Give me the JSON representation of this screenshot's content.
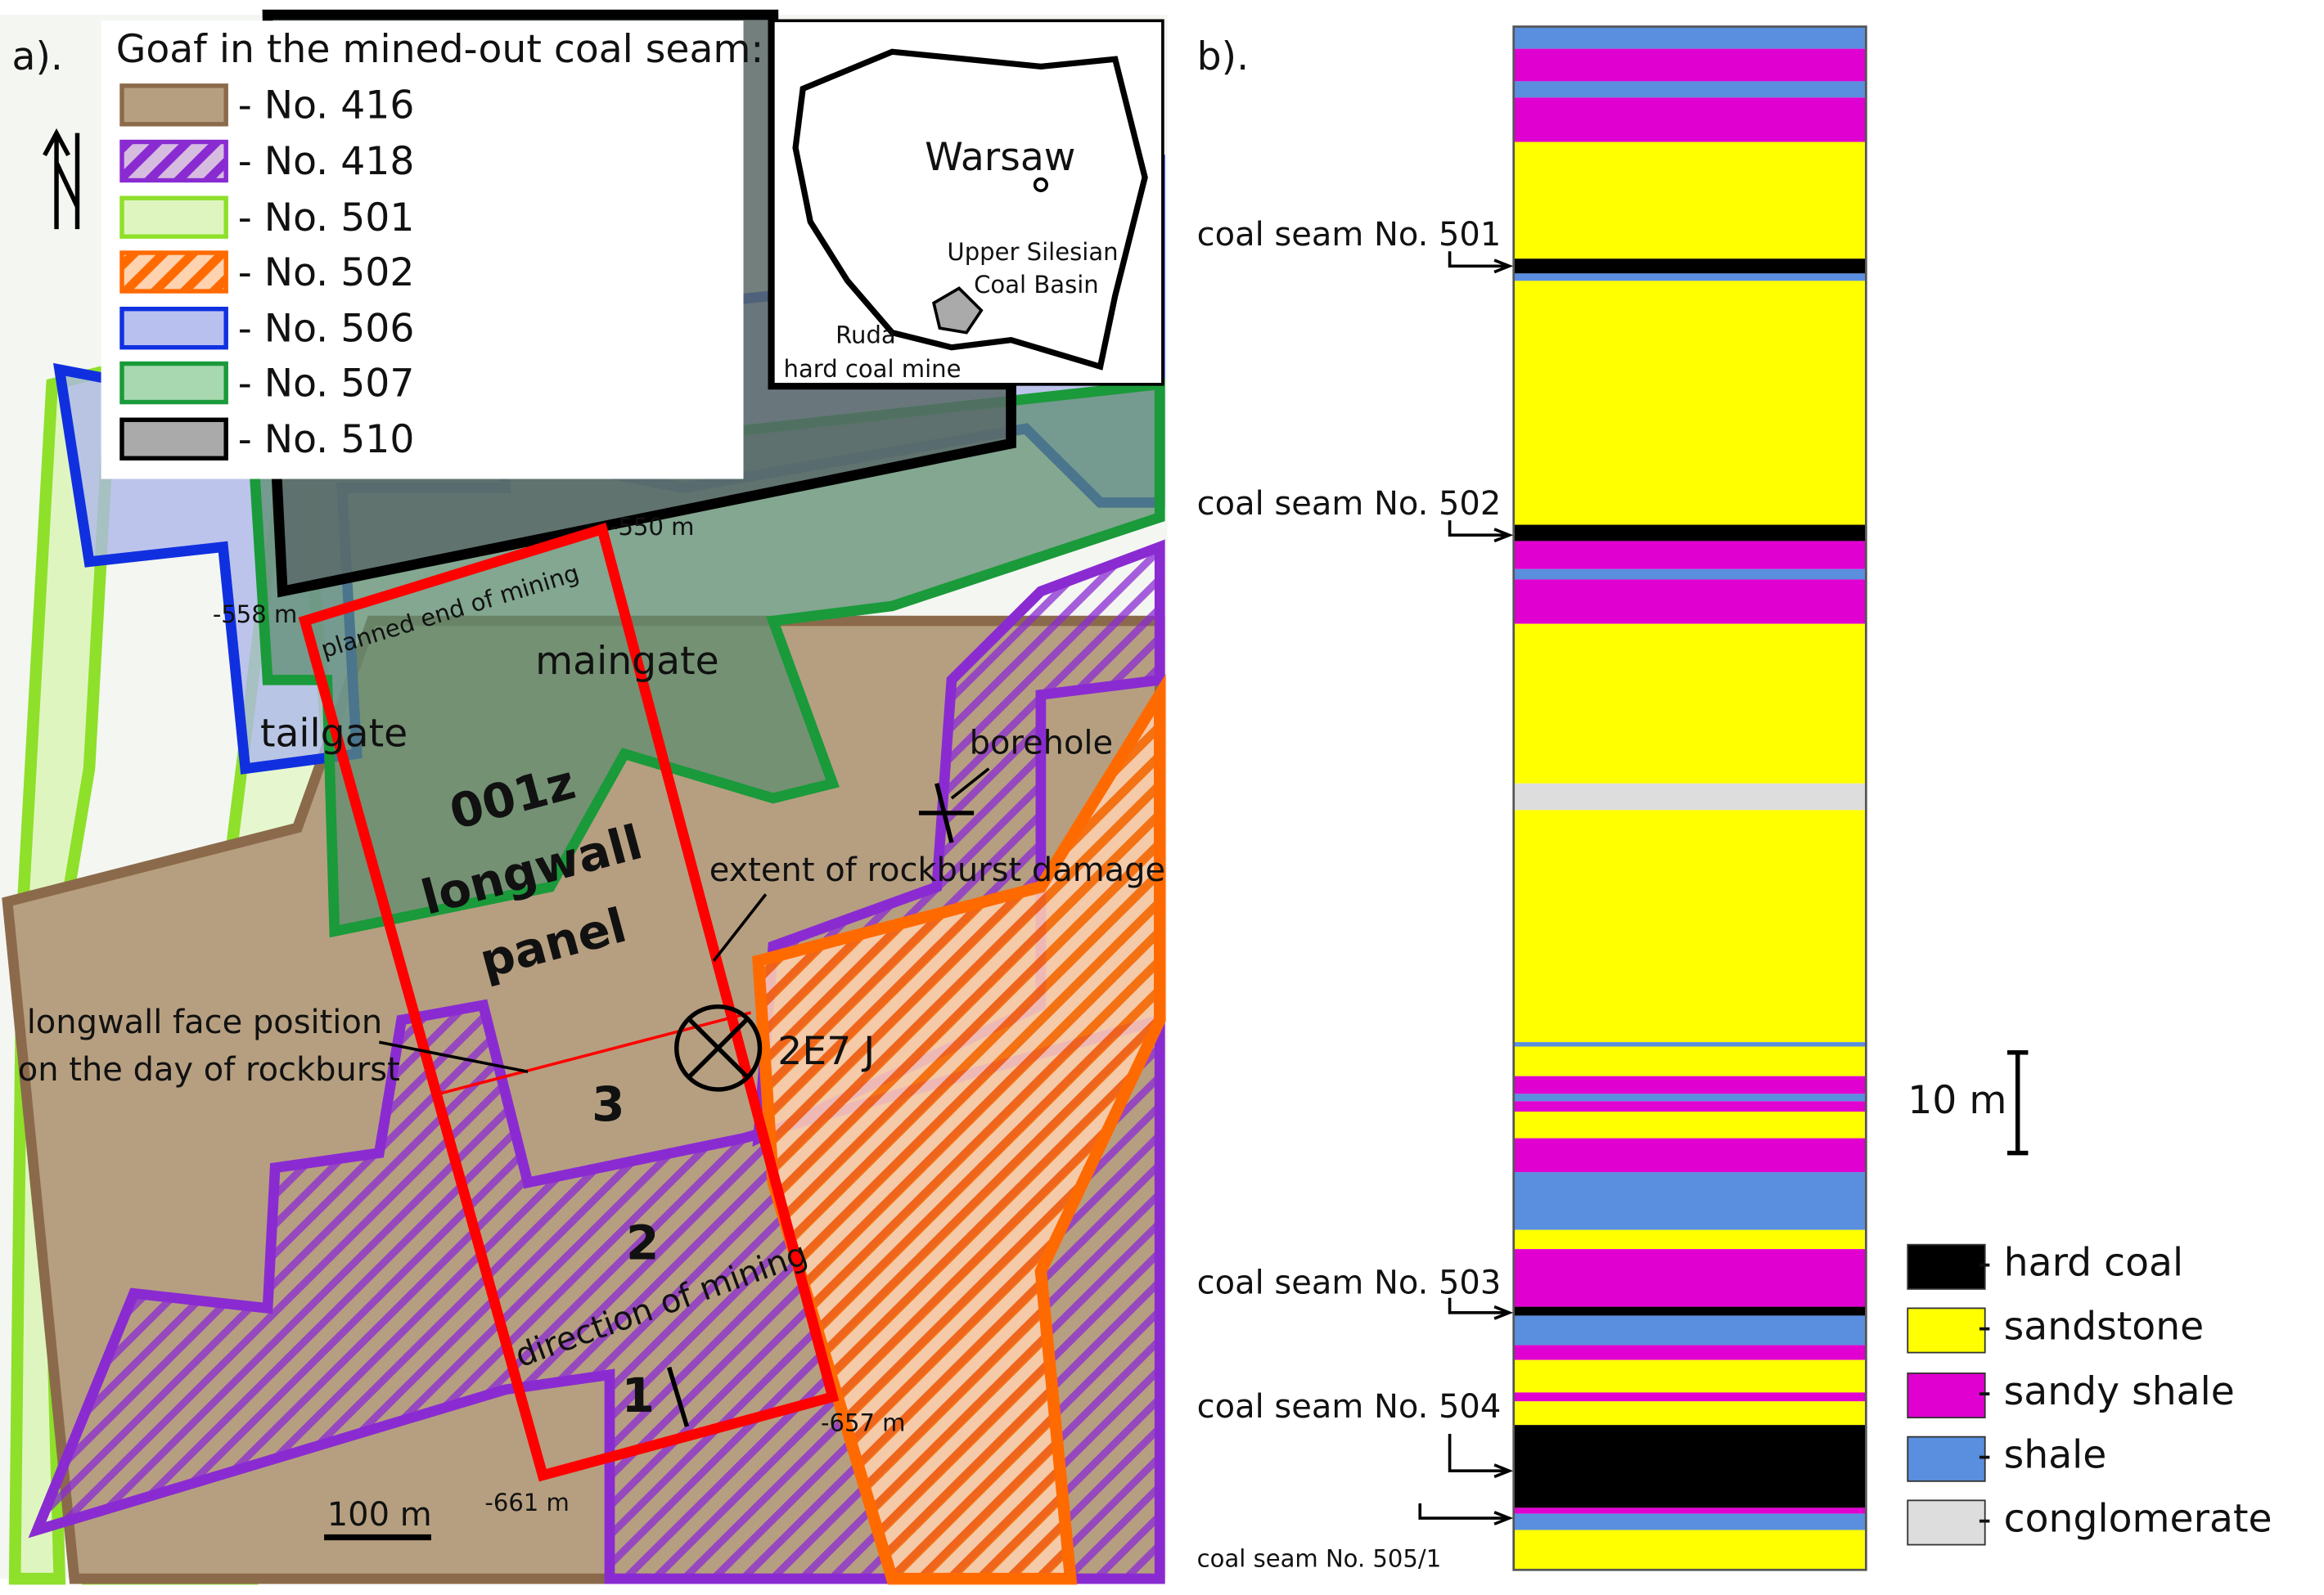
{
  "panel_a": {
    "label": "a).",
    "legend": {
      "title": "Goaf in the mined-out coal seam:",
      "items": [
        "- No. 416",
        "- No. 418",
        "- No. 501",
        "- No. 502",
        "- No. 506",
        "- No. 507",
        "- No. 510"
      ]
    },
    "inset": {
      "city": "Warsaw",
      "basin": [
        "Upper Silesian",
        "Coal Basin"
      ],
      "mine": [
        "Ruda",
        "hard coal mine"
      ]
    },
    "map": {
      "depth_550": "-550 m",
      "depth_558": "-558 m",
      "planned_end": "planned end of mining",
      "maingate": "maingate",
      "tailgate": "tailgate",
      "panel": [
        "001z",
        "longwall",
        "panel"
      ],
      "borehole": "borehole",
      "damage": "extent of rockburst damage",
      "face": [
        "longwall face position",
        "on the day of rockburst"
      ],
      "energy": "2E7 J",
      "stages": [
        "3",
        "2",
        "1"
      ],
      "direction": "direction of mining",
      "depth_657": "-657 m",
      "depth_661": "-661 m",
      "scale": "100 m"
    }
  },
  "panel_b": {
    "label": "b).",
    "seams": [
      "coal seam No. 501",
      "coal seam No. 502",
      "coal seam No. 503",
      "coal seam No. 504",
      "coal seam No. 505/1"
    ],
    "scale": "10 m",
    "legend": [
      "- hard coal",
      "- sandstone",
      "- sandy shale",
      "- shale",
      "- conglomerate"
    ]
  }
}
